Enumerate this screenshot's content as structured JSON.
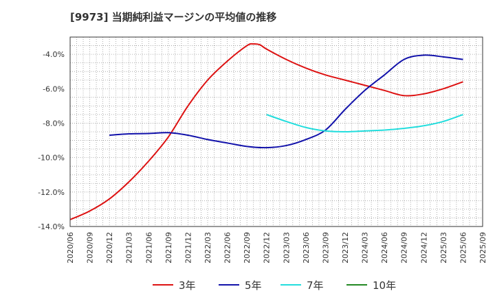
{
  "title": "[9973]  当期純利益マージンの平均値の推移",
  "chart_data": {
    "type": "line",
    "title": "[9973]  当期純利益マージンの平均値の推移",
    "xlabel": "",
    "ylabel": "",
    "ylim": [
      -14.0,
      -3.0
    ],
    "yticks": [
      -14.0,
      -12.0,
      -10.0,
      -8.0,
      -6.0,
      -4.0
    ],
    "ytick_labels": [
      "-14.0%",
      "-12.0%",
      "-10.0%",
      "-8.0%",
      "-6.0%",
      "-4.0%"
    ],
    "xticks": [
      "2020/06",
      "2020/09",
      "2020/12",
      "2021/03",
      "2021/06",
      "2021/09",
      "2021/12",
      "2022/03",
      "2022/06",
      "2022/09",
      "2022/12",
      "2023/03",
      "2023/06",
      "2023/09",
      "2023/12",
      "2024/03",
      "2024/06",
      "2024/09",
      "2024/12",
      "2025/03",
      "2025/06",
      "2025/09"
    ],
    "grid": true,
    "legend_position": "bottom",
    "series": [
      {
        "name": "3年",
        "color": "#dd1111",
        "points": [
          [
            "2020/06",
            -13.6
          ],
          [
            "2020/09",
            -13.1
          ],
          [
            "2020/12",
            -12.4
          ],
          [
            "2021/03",
            -11.4
          ],
          [
            "2021/06",
            -10.2
          ],
          [
            "2021/09",
            -8.8
          ],
          [
            "2021/12",
            -7.0
          ],
          [
            "2022/03",
            -5.5
          ],
          [
            "2022/06",
            -4.4
          ],
          [
            "2022/09",
            -3.5
          ],
          [
            "2022/10",
            -3.4
          ],
          [
            "2022/11",
            -3.45
          ],
          [
            "2022/12",
            -3.7
          ],
          [
            "2023/03",
            -4.3
          ],
          [
            "2023/06",
            -4.8
          ],
          [
            "2023/09",
            -5.2
          ],
          [
            "2023/12",
            -5.5
          ],
          [
            "2024/03",
            -5.8
          ],
          [
            "2024/06",
            -6.1
          ],
          [
            "2024/09",
            -6.4
          ],
          [
            "2024/12",
            -6.3
          ],
          [
            "2025/03",
            -6.0
          ],
          [
            "2025/06",
            -5.6
          ]
        ]
      },
      {
        "name": "5年",
        "color": "#1111aa",
        "points": [
          [
            "2020/12",
            -8.7
          ],
          [
            "2021/03",
            -8.62
          ],
          [
            "2021/06",
            -8.6
          ],
          [
            "2021/09",
            -8.55
          ],
          [
            "2021/12",
            -8.7
          ],
          [
            "2022/03",
            -8.95
          ],
          [
            "2022/06",
            -9.15
          ],
          [
            "2022/09",
            -9.35
          ],
          [
            "2022/12",
            -9.42
          ],
          [
            "2023/03",
            -9.3
          ],
          [
            "2023/06",
            -8.95
          ],
          [
            "2023/09",
            -8.4
          ],
          [
            "2023/12",
            -7.2
          ],
          [
            "2024/03",
            -6.1
          ],
          [
            "2024/06",
            -5.2
          ],
          [
            "2024/09",
            -4.3
          ],
          [
            "2024/12",
            -4.05
          ],
          [
            "2025/03",
            -4.15
          ],
          [
            "2025/06",
            -4.3
          ]
        ]
      },
      {
        "name": "7年",
        "color": "#22dddd",
        "points": [
          [
            "2022/12",
            -7.5
          ],
          [
            "2023/03",
            -7.9
          ],
          [
            "2023/06",
            -8.25
          ],
          [
            "2023/09",
            -8.45
          ],
          [
            "2023/12",
            -8.5
          ],
          [
            "2024/03",
            -8.45
          ],
          [
            "2024/06",
            -8.4
          ],
          [
            "2024/09",
            -8.3
          ],
          [
            "2024/12",
            -8.15
          ],
          [
            "2025/03",
            -7.9
          ],
          [
            "2025/06",
            -7.5
          ]
        ]
      },
      {
        "name": "10年",
        "color": "#228822",
        "points": []
      }
    ]
  }
}
